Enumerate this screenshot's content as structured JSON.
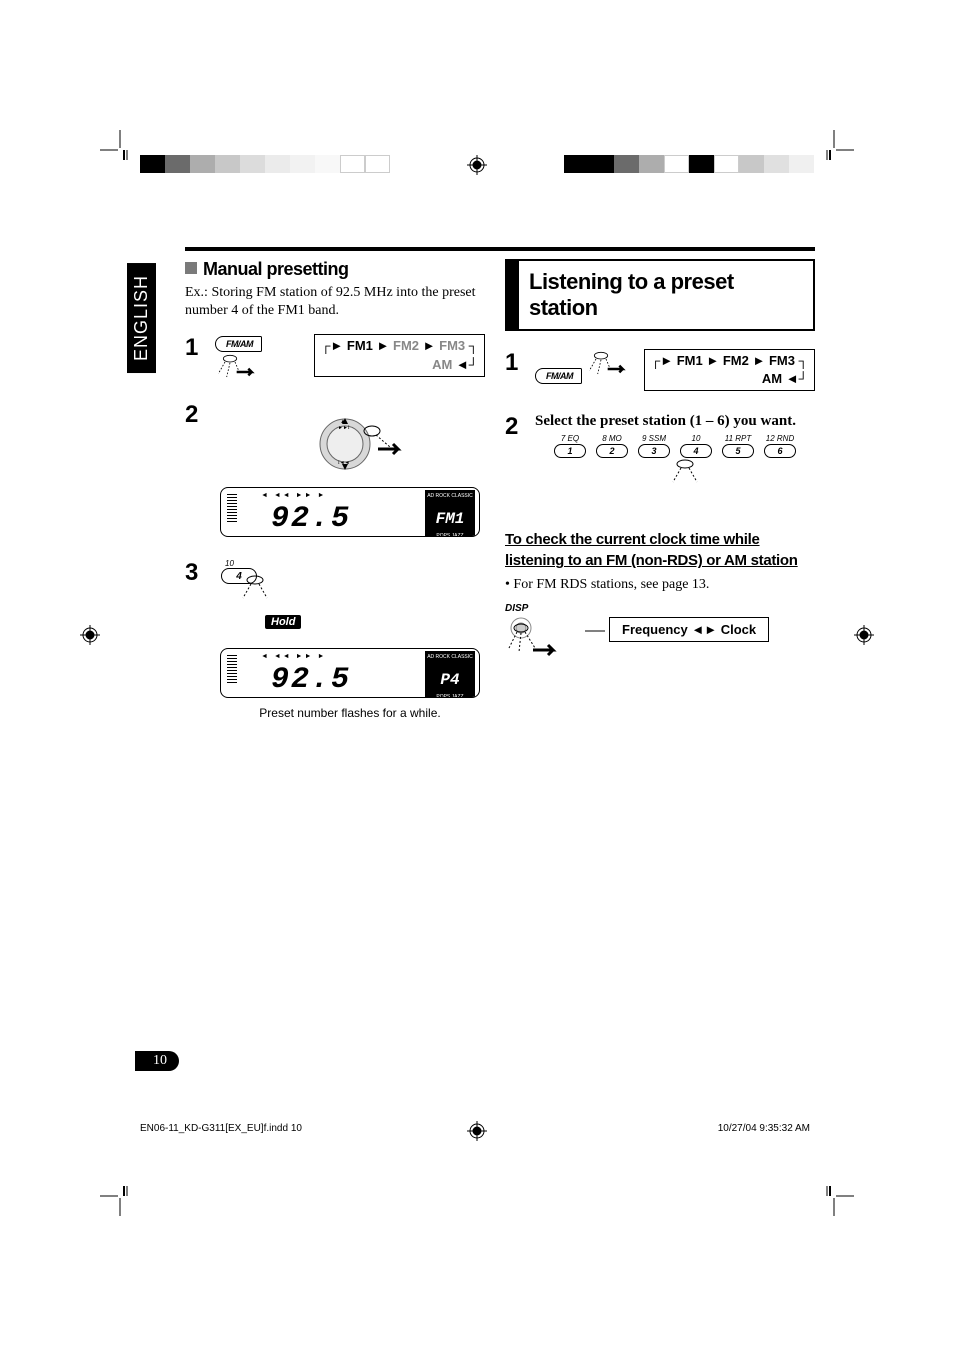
{
  "language_tab": "ENGLISH",
  "page_number": "10",
  "left": {
    "title": "Manual presetting",
    "intro_prefix": "Ex.:",
    "intro": "Storing FM station of 92.5 MHz into the preset number 4 of the FM1 band.",
    "fmam_label": "FM/AM",
    "bands": {
      "fm1": "FM1",
      "fm2": "FM2",
      "fm3": "FM3",
      "am": "AM"
    },
    "lcd1_top": "◄  ◄◄  ►►  ►",
    "lcd1_value": "92.5",
    "lcd1_badge": "FM1",
    "lcd1_badge_top": "AD  ROCK CLASSIC",
    "lcd1_badge_bot": "POPS  JAZZ",
    "step3_preset_top": "10",
    "step3_preset_num": "4",
    "hold_label": "Hold",
    "lcd2_value": "92.5",
    "lcd2_badge": "P4",
    "caption": "Preset number flashes for a while."
  },
  "right": {
    "heading": "Listening to a preset station",
    "fmam_label": "FM/AM",
    "bands": {
      "fm1": "FM1",
      "fm2": "FM2",
      "fm3": "FM3",
      "am": "AM"
    },
    "step2_text": "Select the preset station (1 – 6) you want.",
    "preset_tops": [
      "7  EQ",
      "8  MO",
      "9  SSM",
      "10",
      "11  RPT",
      "12  RND"
    ],
    "preset_nums": [
      "1",
      "2",
      "3",
      "4",
      "5",
      "6"
    ],
    "sub_heading": "To check the current clock time while listening to an FM (non-RDS) or AM station",
    "bullet": "For FM RDS stations, see page 13.",
    "disp_label": "DISP",
    "freq_label": "Frequency",
    "clock_label": "Clock"
  },
  "footer": {
    "left": "EN06-11_KD-G311[EX_EU]f.indd   10",
    "right": "10/27/04   9:35:32 AM"
  },
  "colorbar_left": [
    "#000000",
    "#6b6b6b",
    "#adadad",
    "#c8c8c8",
    "#dcdcdc",
    "#ebebeb",
    "#f2f2f2",
    "#f8f8f8",
    "#ffffff",
    "#ffffff"
  ],
  "colorbar_right": [
    "#000000",
    "#000000",
    "#6b6b6b",
    "#adadad",
    "#ffffff",
    "#000000",
    "#ffffff",
    "#c8c8c8",
    "#e0e0e0",
    "#f0f0f0"
  ]
}
